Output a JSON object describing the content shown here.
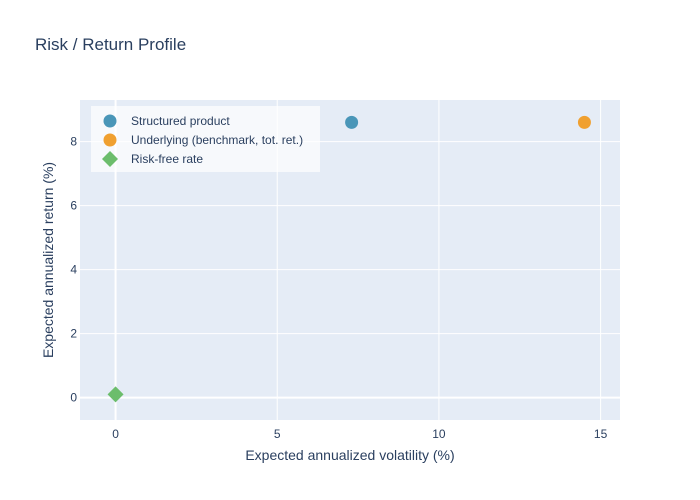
{
  "chart_data": {
    "type": "scatter",
    "title": "Risk / Return Profile",
    "xlabel": "Expected annualized volatility (%)",
    "ylabel": "Expected annualized return (%)",
    "xlim": [
      -1.1,
      15.6
    ],
    "ylim": [
      -0.7,
      9.3
    ],
    "xticks": [
      0,
      5,
      10,
      15
    ],
    "yticks": [
      0,
      2,
      4,
      6,
      8
    ],
    "grid": true,
    "legend_position": "top-left",
    "series": [
      {
        "name": "Structured product",
        "marker": "circle",
        "color": "#4a96b8",
        "x": [
          7.3
        ],
        "y": [
          8.6
        ]
      },
      {
        "name": "Underlying (benchmark, tot. ret.)",
        "marker": "circle",
        "color": "#f0a030",
        "x": [
          14.5
        ],
        "y": [
          8.6
        ]
      },
      {
        "name": "Risk-free rate",
        "marker": "diamond",
        "color": "#6cbd6c",
        "x": [
          0.0
        ],
        "y": [
          0.1
        ]
      }
    ]
  }
}
